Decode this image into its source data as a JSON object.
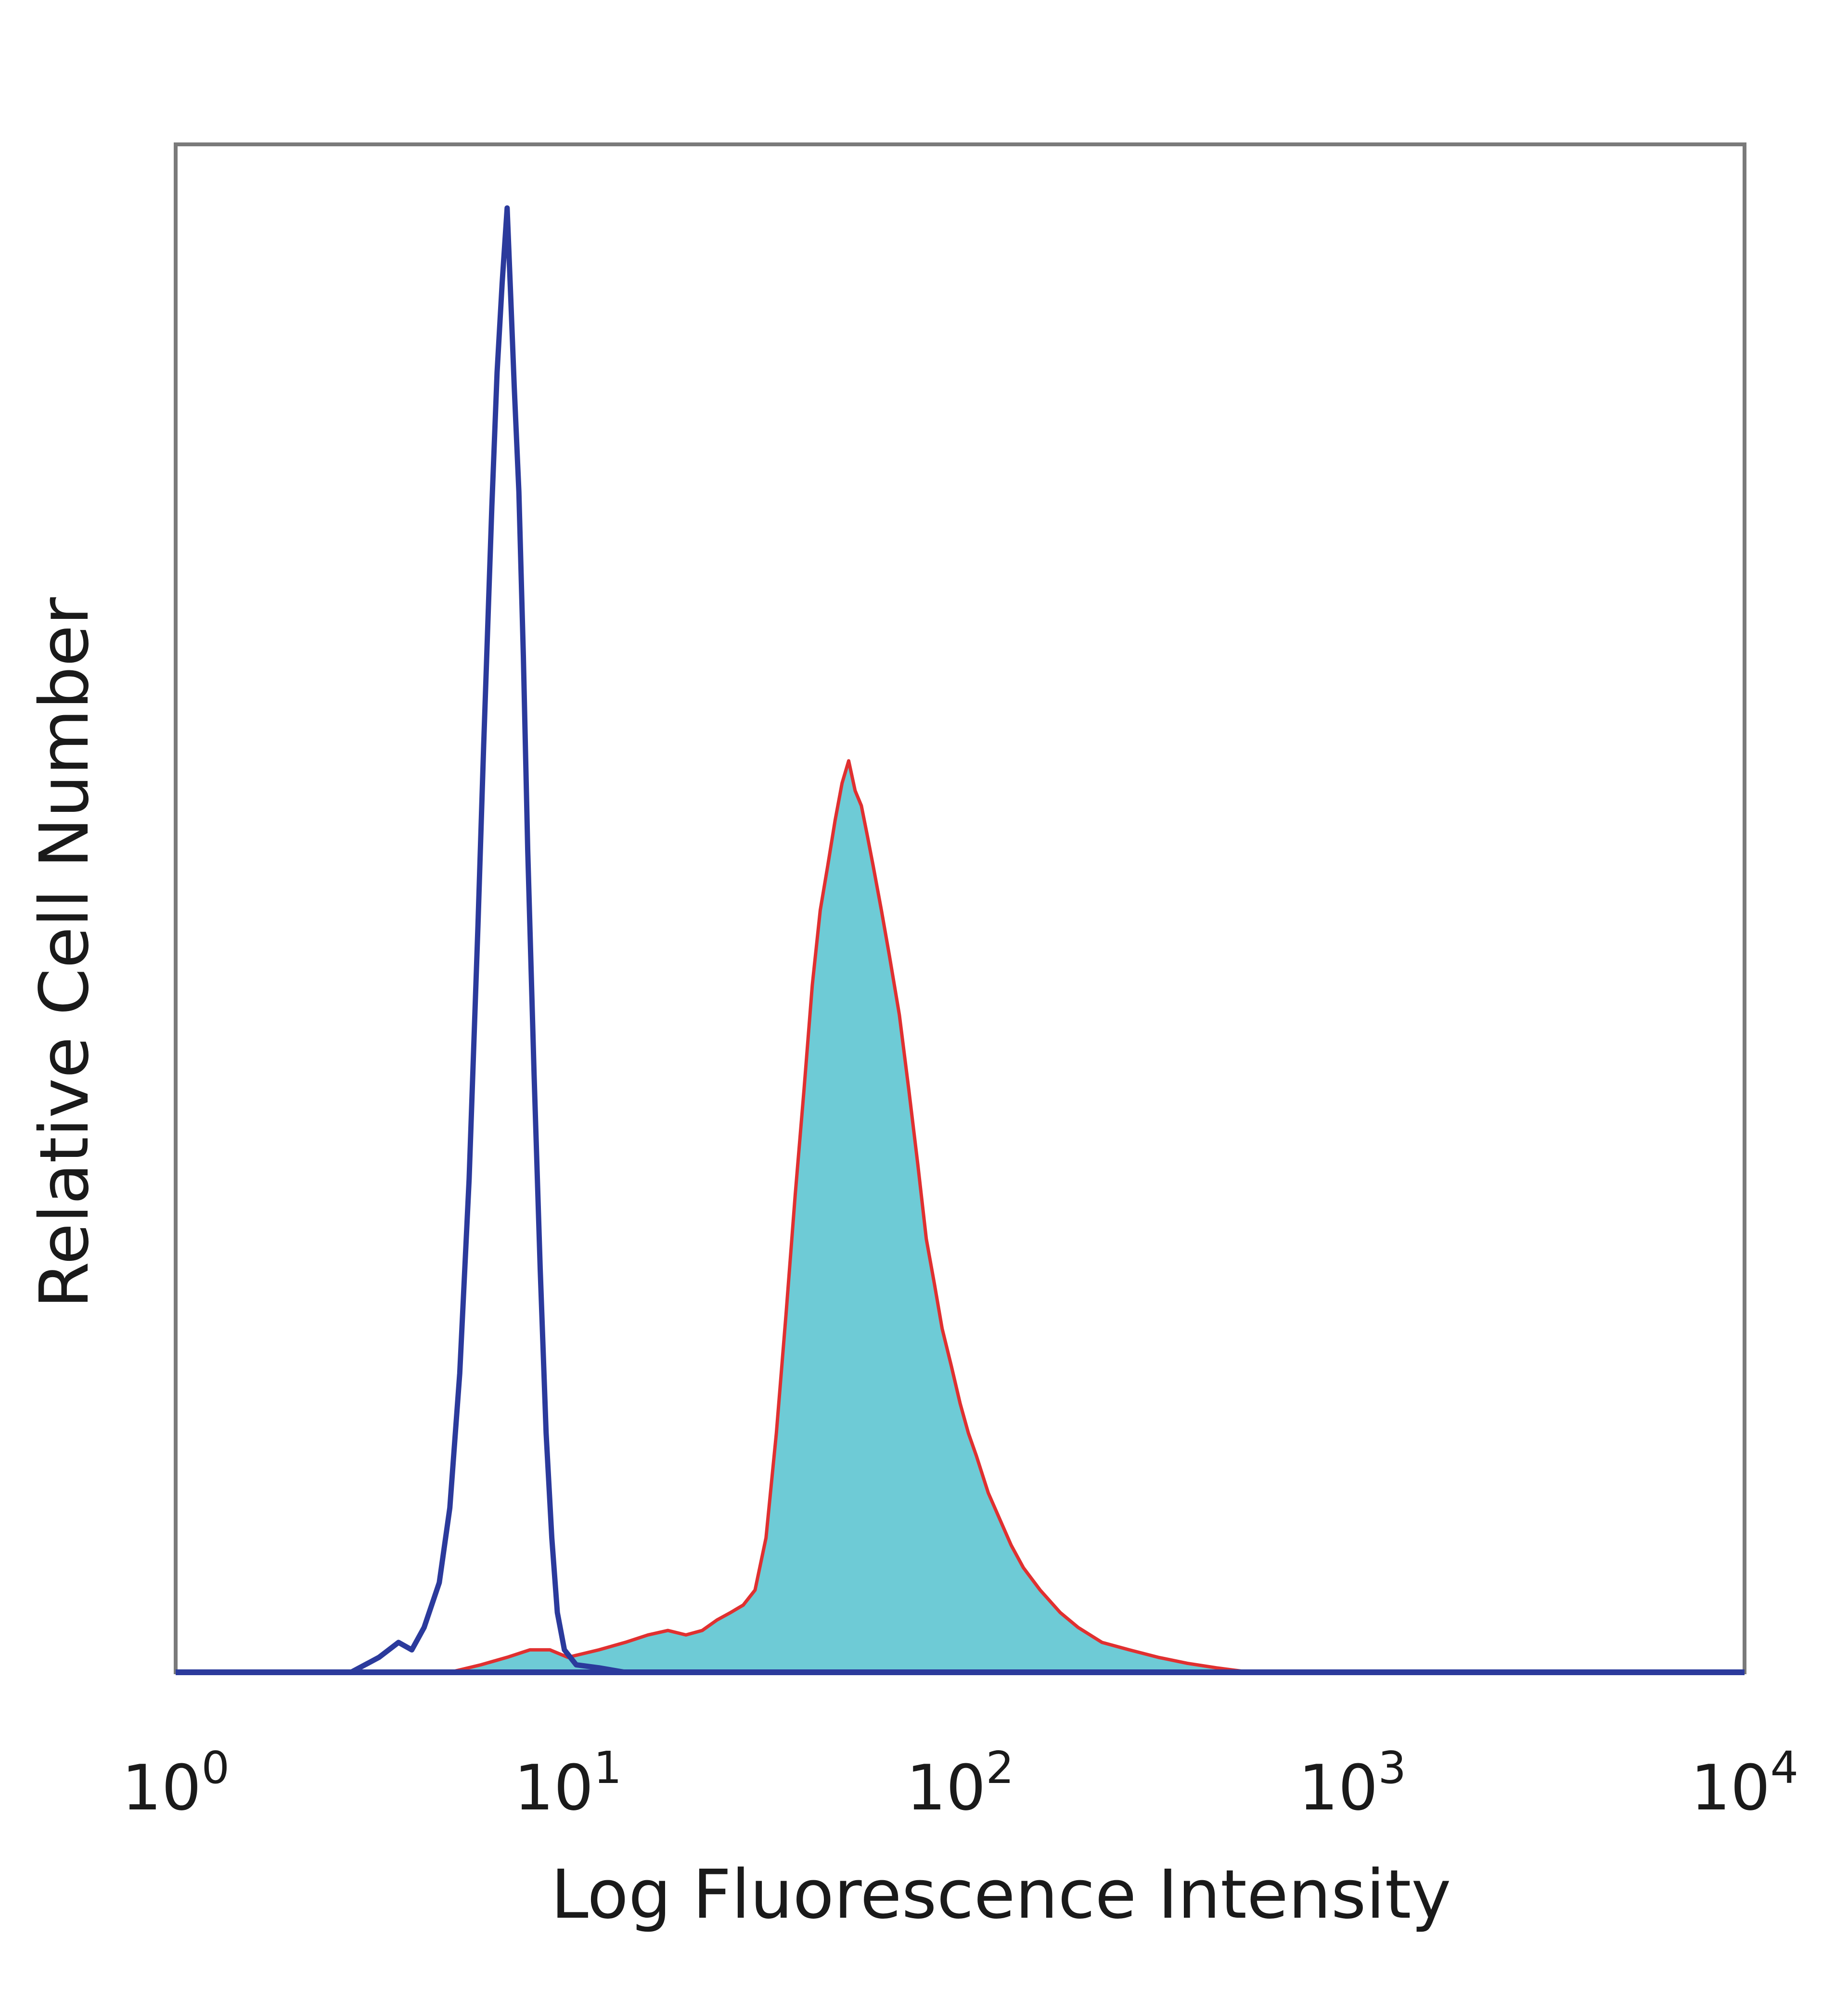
{
  "chart_data": {
    "type": "area",
    "title": "",
    "xlabel": "Log Fluorescence Intensity",
    "ylabel": "Relative Cell Number",
    "x_scale": "log",
    "xlim": [
      1,
      10000
    ],
    "ylim": [
      0,
      100
    ],
    "grid": false,
    "x_ticks": [
      {
        "base": "10",
        "exp": "0",
        "value": 1
      },
      {
        "base": "10",
        "exp": "1",
        "value": 10
      },
      {
        "base": "10",
        "exp": "2",
        "value": 100
      },
      {
        "base": "10",
        "exp": "3",
        "value": 1000
      },
      {
        "base": "10",
        "exp": "4",
        "value": 10000
      }
    ],
    "series": [
      {
        "style": "outline",
        "color": "#2b3a9c",
        "points": [
          [
            2.8,
            0
          ],
          [
            3.3,
            1
          ],
          [
            3.7,
            2
          ],
          [
            4.0,
            1.5
          ],
          [
            4.3,
            3
          ],
          [
            4.7,
            6
          ],
          [
            5.0,
            11
          ],
          [
            5.3,
            20
          ],
          [
            5.6,
            33
          ],
          [
            5.9,
            50
          ],
          [
            6.1,
            62
          ],
          [
            6.4,
            78
          ],
          [
            6.6,
            87
          ],
          [
            6.8,
            93
          ],
          [
            7.0,
            98
          ],
          [
            7.15,
            92
          ],
          [
            7.3,
            86
          ],
          [
            7.5,
            79
          ],
          [
            7.7,
            68
          ],
          [
            7.9,
            55
          ],
          [
            8.2,
            40
          ],
          [
            8.5,
            27
          ],
          [
            8.8,
            16
          ],
          [
            9.1,
            9
          ],
          [
            9.4,
            4
          ],
          [
            9.8,
            1.5
          ],
          [
            10.5,
            0.5
          ],
          [
            12,
            0.3
          ],
          [
            14,
            0
          ]
        ]
      },
      {
        "style": "filled",
        "color": "#6ecbd6",
        "edge_color": "#e03030",
        "points": [
          [
            5,
            0
          ],
          [
            6,
            0.5
          ],
          [
            7,
            1
          ],
          [
            8,
            1.5
          ],
          [
            9,
            1.5
          ],
          [
            10,
            1
          ],
          [
            12,
            1.5
          ],
          [
            14,
            2
          ],
          [
            16,
            2.5
          ],
          [
            18,
            2.8
          ],
          [
            20,
            2.5
          ],
          [
            22,
            2.8
          ],
          [
            24,
            3.5
          ],
          [
            26,
            4
          ],
          [
            28,
            4.5
          ],
          [
            30,
            5.5
          ],
          [
            32,
            9
          ],
          [
            34,
            16
          ],
          [
            36,
            24
          ],
          [
            38,
            32
          ],
          [
            40,
            39
          ],
          [
            42,
            46
          ],
          [
            44,
            51
          ],
          [
            46,
            54
          ],
          [
            48,
            57
          ],
          [
            50,
            59.5
          ],
          [
            52,
            61
          ],
          [
            54,
            59
          ],
          [
            56,
            58
          ],
          [
            58,
            56
          ],
          [
            60,
            54
          ],
          [
            63,
            51
          ],
          [
            66,
            48
          ],
          [
            70,
            44
          ],
          [
            74,
            39
          ],
          [
            78,
            34
          ],
          [
            82,
            29
          ],
          [
            86,
            26
          ],
          [
            90,
            23
          ],
          [
            95,
            20.5
          ],
          [
            100,
            18
          ],
          [
            105,
            16
          ],
          [
            110,
            14.5
          ],
          [
            118,
            12
          ],
          [
            125,
            10.5
          ],
          [
            135,
            8.5
          ],
          [
            145,
            7
          ],
          [
            160,
            5.5
          ],
          [
            180,
            4
          ],
          [
            200,
            3
          ],
          [
            230,
            2
          ],
          [
            270,
            1.5
          ],
          [
            320,
            1
          ],
          [
            380,
            0.6
          ],
          [
            450,
            0.3
          ],
          [
            550,
            0
          ]
        ]
      }
    ]
  }
}
